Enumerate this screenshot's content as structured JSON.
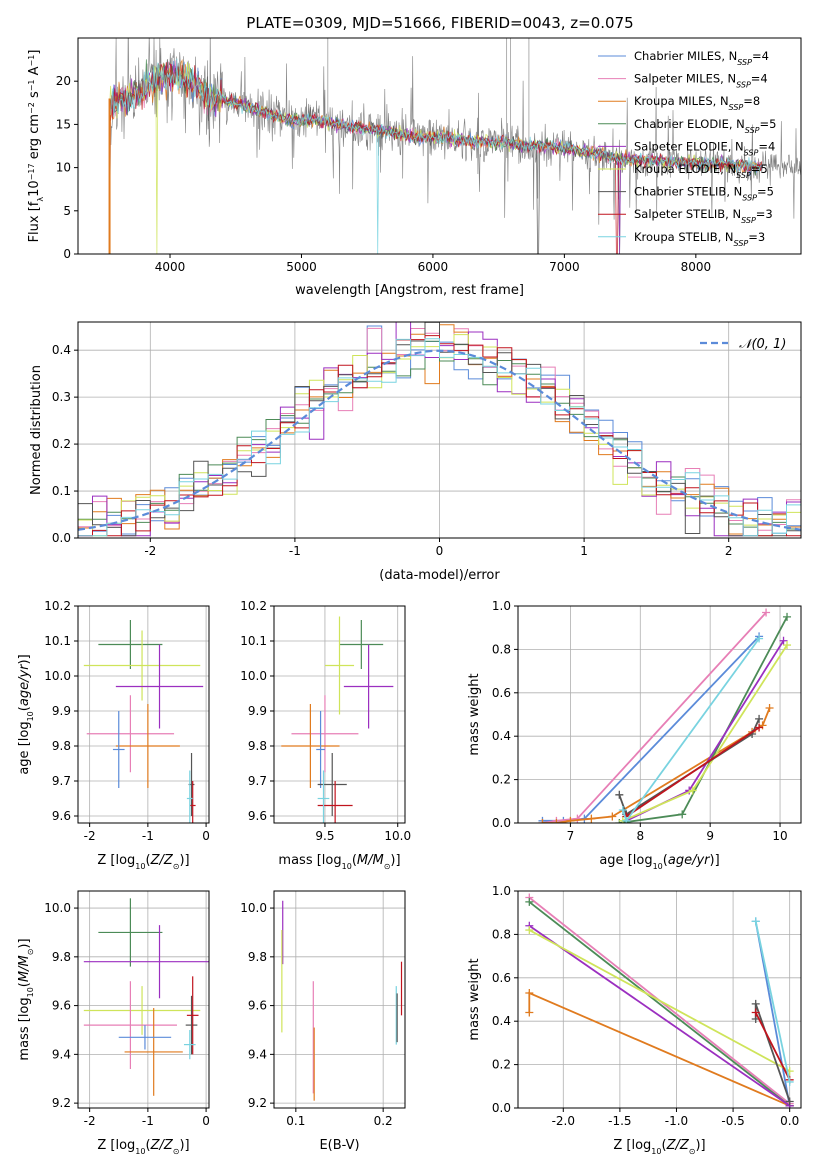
{
  "figure_title": "PLATE=0309, MJD=51666, FIBERID=0043, z=0.075",
  "colors": {
    "Chabrier MILES": "#5b8bd9",
    "Salpeter MILES": "#e77fb6",
    "Kroupa MILES": "#e07b1f",
    "Chabrier ELODIE": "#4c8b57",
    "Salpeter ELODIE": "#9b2fc0",
    "Kroupa ELODIE": "#cfe45a",
    "Chabrier STELIB": "#555555",
    "Salpeter STELIB": "#c0141e",
    "Kroupa STELIB": "#79d3e0",
    "data": "#808080",
    "normal": "#5b8bd9"
  },
  "legend1": [
    {
      "label": "Chabrier MILES, N",
      "sub": "SSP",
      "suffix": "=4",
      "model": "Chabrier MILES"
    },
    {
      "label": "Salpeter MILES, N",
      "sub": "SSP",
      "suffix": "=4",
      "model": "Salpeter MILES"
    },
    {
      "label": "Kroupa MILES, N",
      "sub": "SSP",
      "suffix": "=8",
      "model": "Kroupa MILES"
    },
    {
      "label": "Chabrier ELODIE, N",
      "sub": "SSP",
      "suffix": "=5",
      "model": "Chabrier ELODIE"
    },
    {
      "label": "Salpeter ELODIE, N",
      "sub": "SSP",
      "suffix": "=4",
      "model": "Salpeter ELODIE"
    },
    {
      "label": "Kroupa ELODIE, N",
      "sub": "SSP",
      "suffix": "=5",
      "model": "Kroupa ELODIE"
    },
    {
      "label": "Chabrier STELIB, N",
      "sub": "SSP",
      "suffix": "=5",
      "model": "Chabrier STELIB"
    },
    {
      "label": "Salpeter STELIB, N",
      "sub": "SSP",
      "suffix": "=3",
      "model": "Salpeter STELIB"
    },
    {
      "label": "Kroupa STELIB, N",
      "sub": "SSP",
      "suffix": "=3",
      "model": "Kroupa STELIB"
    }
  ],
  "chart_data": [
    {
      "id": "spectrum",
      "type": "line",
      "xlabel": "wavelength [Angstrom, rest frame]",
      "ylabel": "Flux [fλ10⁻¹⁷ erg cm⁻² s⁻¹ A⁻¹]",
      "xlim": [
        3300,
        8800
      ],
      "ylim": [
        0,
        25
      ],
      "xticks": [
        4000,
        5000,
        6000,
        7000,
        8000
      ],
      "yticks": [
        0,
        5,
        10,
        15,
        20
      ],
      "grid": false,
      "legend_position": "top-right",
      "continuum": {
        "x": [
          3530,
          3600,
          3700,
          3800,
          3900,
          4000,
          4100,
          4200,
          4300,
          4400,
          4500,
          4700,
          4900,
          5100,
          5300,
          5500,
          5700,
          5900,
          6100,
          6300,
          6500,
          6700,
          6900,
          7100,
          7300,
          7400
        ],
        "y": [
          17,
          17.5,
          18,
          19,
          20.5,
          20.5,
          20.5,
          19.5,
          18,
          18,
          17.5,
          16.5,
          15.5,
          15.5,
          15,
          14.5,
          14,
          13.5,
          13.5,
          13,
          13,
          12.5,
          12.5,
          12,
          11.5,
          11
        ]
      },
      "data_range": [
        3530,
        8800
      ]
    },
    {
      "id": "residuals",
      "type": "step-histogram",
      "xlabel": "(data-model)/error",
      "ylabel": "Normed distribution",
      "xlim": [
        -2.5,
        2.5
      ],
      "ylim": [
        0,
        0.46
      ],
      "xticks": [
        -2,
        -1,
        0,
        1,
        2
      ],
      "yticks": [
        0.0,
        0.1,
        0.2,
        0.3,
        0.4
      ],
      "grid": true,
      "bin_width": 0.1,
      "reference_curve": {
        "label": "𝒩(0, 1)",
        "style": "dashed",
        "mean": 0,
        "sigma": 1
      },
      "legend_position": "top-right"
    },
    {
      "id": "age_vs_Z",
      "type": "errorbar",
      "xlabel": "Z [log10(Z/Z⊙)]",
      "ylabel": "age  [log10(age/yr)]",
      "xlim": [
        -2.2,
        0.05
      ],
      "ylim": [
        9.58,
        10.2
      ],
      "xticks": [
        -2,
        -1,
        0
      ],
      "yticks": [
        9.6,
        9.7,
        9.8,
        9.9,
        10.0,
        10.1,
        10.2
      ],
      "grid": true,
      "points": [
        {
          "model": "Chabrier ELODIE",
          "x": -1.3,
          "xerr": 0.55,
          "y": 10.09,
          "yerr": 0.07
        },
        {
          "model": "Kroupa ELODIE",
          "x": -1.1,
          "xerr": 1.0,
          "y": 10.03,
          "yerr": 0.1
        },
        {
          "model": "Salpeter ELODIE",
          "x": -0.8,
          "xerr": 0.75,
          "y": 9.97,
          "yerr": 0.12
        },
        {
          "model": "Salpeter MILES",
          "x": -1.3,
          "xerr": 0.75,
          "y": 9.835,
          "yerr": 0.11
        },
        {
          "model": "Kroupa MILES",
          "x": -1.0,
          "xerr": 0.55,
          "y": 9.8,
          "yerr": 0.12
        },
        {
          "model": "Chabrier MILES",
          "x": -1.5,
          "xerr": 0.1,
          "y": 9.79,
          "yerr": 0.11
        },
        {
          "model": "Chabrier STELIB",
          "x": -0.25,
          "xerr": 0.05,
          "y": 9.69,
          "yerr": 0.09
        },
        {
          "model": "Salpeter STELIB",
          "x": -0.23,
          "xerr": 0.05,
          "y": 9.63,
          "yerr": 0.07
        },
        {
          "model": "Kroupa STELIB",
          "x": -0.28,
          "xerr": 0.05,
          "y": 9.65,
          "yerr": 0.08
        }
      ]
    },
    {
      "id": "age_vs_mass",
      "type": "errorbar",
      "xlabel": "mass [log10(M/M⊙)]",
      "ylabel": "",
      "xlim": [
        9.15,
        10.05
      ],
      "ylim": [
        9.58,
        10.2
      ],
      "xticks": [
        9.5,
        10.0
      ],
      "yticks": [
        9.6,
        9.7,
        9.8,
        9.9,
        10.0,
        10.1,
        10.2
      ],
      "grid": true,
      "points": [
        {
          "model": "Chabrier ELODIE",
          "x": 9.75,
          "xerr": 0.15,
          "y": 10.09,
          "yerr": 0.07
        },
        {
          "model": "Kroupa ELODIE",
          "x": 9.6,
          "xerr": 0.1,
          "y": 10.03,
          "yerr": 0.14
        },
        {
          "model": "Salpeter ELODIE",
          "x": 9.8,
          "xerr": 0.17,
          "y": 9.97,
          "yerr": 0.12
        },
        {
          "model": "Salpeter MILES",
          "x": 9.5,
          "xerr": 0.23,
          "y": 9.835,
          "yerr": 0.11
        },
        {
          "model": "Kroupa MILES",
          "x": 9.4,
          "xerr": 0.2,
          "y": 9.8,
          "yerr": 0.12
        },
        {
          "model": "Chabrier MILES",
          "x": 9.47,
          "xerr": 0.03,
          "y": 9.79,
          "yerr": 0.11
        },
        {
          "model": "Chabrier STELIB",
          "x": 9.55,
          "xerr": 0.1,
          "y": 9.69,
          "yerr": 0.09
        },
        {
          "model": "Salpeter STELIB",
          "x": 9.57,
          "xerr": 0.12,
          "y": 9.63,
          "yerr": 0.07
        },
        {
          "model": "Kroupa STELIB",
          "x": 9.49,
          "xerr": 0.04,
          "y": 9.65,
          "yerr": 0.08
        }
      ]
    },
    {
      "id": "weight_vs_age",
      "type": "line",
      "xlabel": "age  [log10(age/yr)]",
      "ylabel": "mass weight",
      "xlim": [
        6.25,
        10.3
      ],
      "ylim": [
        0,
        1.0
      ],
      "xticks": [
        7,
        8,
        9,
        10
      ],
      "yticks": [
        0.0,
        0.2,
        0.4,
        0.6,
        0.8,
        1.0
      ],
      "grid": true,
      "series": [
        {
          "model": "Chabrier MILES",
          "x": [
            6.6,
            6.9,
            7.2,
            9.7
          ],
          "y": [
            0.01,
            0.01,
            0.02,
            0.86
          ]
        },
        {
          "model": "Salpeter MILES",
          "x": [
            6.6,
            6.8,
            7.1,
            9.8
          ],
          "y": [
            0.0,
            0.01,
            0.02,
            0.97
          ]
        },
        {
          "model": "Kroupa MILES",
          "x": [
            6.6,
            6.8,
            7.0,
            7.3,
            7.6,
            9.6,
            9.75,
            9.85
          ],
          "y": [
            0.0,
            0.0,
            0.01,
            0.02,
            0.03,
            0.42,
            0.45,
            0.53
          ]
        },
        {
          "model": "Chabrier ELODIE",
          "x": [
            7.7,
            8.6,
            10.1
          ],
          "y": [
            0.0,
            0.04,
            0.95
          ]
        },
        {
          "model": "Salpeter ELODIE",
          "x": [
            7.8,
            8.7,
            10.05
          ],
          "y": [
            0.01,
            0.15,
            0.84
          ]
        },
        {
          "model": "Kroupa ELODIE",
          "x": [
            7.75,
            8.75,
            10.1
          ],
          "y": [
            0.01,
            0.15,
            0.82
          ]
        },
        {
          "model": "Chabrier STELIB",
          "x": [
            7.7,
            7.8,
            9.6,
            9.7
          ],
          "y": [
            0.13,
            0.04,
            0.41,
            0.48
          ]
        },
        {
          "model": "Salpeter STELIB",
          "x": [
            7.8,
            9.7
          ],
          "y": [
            0.03,
            0.44
          ]
        },
        {
          "model": "Kroupa STELIB",
          "x": [
            7.75,
            7.8,
            9.7
          ],
          "y": [
            0.06,
            0.01,
            0.85
          ]
        }
      ]
    },
    {
      "id": "mass_vs_Z",
      "type": "errorbar",
      "xlabel": "Z [log10(Z/Z⊙)]",
      "ylabel": "mass [log10(M/M⊙)]",
      "xlim": [
        -2.2,
        0.05
      ],
      "ylim": [
        9.18,
        10.07
      ],
      "xticks": [
        -2,
        -1,
        0
      ],
      "yticks": [
        9.2,
        9.4,
        9.6,
        9.8,
        10.0
      ],
      "grid": true,
      "points": [
        {
          "model": "Chabrier ELODIE",
          "x": -1.3,
          "xerr": 0.55,
          "y": 9.9,
          "yerr": 0.14
        },
        {
          "model": "Salpeter ELODIE",
          "x": -0.8,
          "xerr": 1.3,
          "y": 9.78,
          "yerr": 0.15
        },
        {
          "model": "Kroupa ELODIE",
          "x": -1.1,
          "xerr": 1.0,
          "y": 9.58,
          "yerr": 0.1
        },
        {
          "model": "Salpeter MILES",
          "x": -1.3,
          "xerr": 0.8,
          "y": 9.52,
          "yerr": 0.18
        },
        {
          "model": "Kroupa MILES",
          "x": -0.9,
          "xerr": 0.5,
          "y": 9.41,
          "yerr": 0.18
        },
        {
          "model": "Chabrier MILES",
          "x": -1.05,
          "xerr": 0.45,
          "y": 9.47,
          "yerr": 0.05
        },
        {
          "model": "Chabrier STELIB",
          "x": -0.25,
          "xerr": 0.1,
          "y": 9.52,
          "yerr": 0.12
        },
        {
          "model": "Salpeter STELIB",
          "x": -0.23,
          "xerr": 0.1,
          "y": 9.56,
          "yerr": 0.16
        },
        {
          "model": "Kroupa STELIB",
          "x": -0.28,
          "xerr": 0.1,
          "y": 9.44,
          "yerr": 0.06
        }
      ]
    },
    {
      "id": "mass_vs_ebv",
      "type": "errorbar",
      "xlabel": "E(B-V)",
      "ylabel": "",
      "xlim": [
        0.075,
        0.225
      ],
      "ylim": [
        9.18,
        10.07
      ],
      "xticks": [
        0.1,
        0.2
      ],
      "yticks": [
        9.2,
        9.4,
        9.6,
        9.8,
        10.0
      ],
      "grid": true,
      "points": [
        {
          "model": "Salpeter ELODIE",
          "x": 0.085,
          "xerr": 0,
          "y": 9.9,
          "yerr": 0.13
        },
        {
          "model": "Kroupa ELODIE",
          "x": 0.084,
          "xerr": 0,
          "y": 9.7,
          "yerr": 0.21
        },
        {
          "model": "Salpeter MILES",
          "x": 0.12,
          "xerr": 0,
          "y": 9.47,
          "yerr": 0.23
        },
        {
          "model": "Kroupa MILES",
          "x": 0.121,
          "xerr": 0,
          "y": 9.36,
          "yerr": 0.15
        },
        {
          "model": "Kroupa STELIB",
          "x": 0.215,
          "xerr": 0,
          "y": 9.56,
          "yerr": 0.12
        },
        {
          "model": "Chabrier STELIB",
          "x": 0.216,
          "xerr": 0,
          "y": 9.55,
          "yerr": 0.1
        },
        {
          "model": "Salpeter STELIB",
          "x": 0.221,
          "xerr": 0,
          "y": 9.67,
          "yerr": 0.11
        }
      ]
    },
    {
      "id": "weight_vs_Z",
      "type": "line",
      "xlabel": "Z [log10(Z/Z⊙)]",
      "ylabel": "mass weight",
      "xlim": [
        -2.4,
        0.1
      ],
      "ylim": [
        0,
        1.0
      ],
      "xticks": [
        -2.0,
        -1.5,
        -1.0,
        -0.5,
        0.0
      ],
      "yticks": [
        0.0,
        0.2,
        0.4,
        0.6,
        0.8,
        1.0
      ],
      "grid": true,
      "series": [
        {
          "model": "Chabrier MILES",
          "x": [
            -0.3,
            0.0
          ],
          "y": [
            0.86,
            0.01
          ]
        },
        {
          "model": "Salpeter MILES",
          "x": [
            -2.3,
            0.0
          ],
          "y": [
            0.97,
            0.02
          ]
        },
        {
          "model": "Kroupa MILES",
          "x": [
            -2.3,
            -2.3,
            0.0
          ],
          "y": [
            0.44,
            0.53,
            0.01
          ]
        },
        {
          "model": "Chabrier ELODIE",
          "x": [
            -2.3,
            0.0
          ],
          "y": [
            0.95,
            0.01
          ]
        },
        {
          "model": "Salpeter ELODIE",
          "x": [
            -2.3,
            0.0
          ],
          "y": [
            0.84,
            0.01
          ]
        },
        {
          "model": "Kroupa ELODIE",
          "x": [
            -2.3,
            0.0
          ],
          "y": [
            0.82,
            0.17
          ]
        },
        {
          "model": "Chabrier STELIB",
          "x": [
            -0.3,
            -0.3,
            0.0
          ],
          "y": [
            0.41,
            0.48,
            0.03
          ]
        },
        {
          "model": "Salpeter STELIB",
          "x": [
            -0.3,
            0.0
          ],
          "y": [
            0.44,
            0.13
          ]
        },
        {
          "model": "Kroupa STELIB",
          "x": [
            -0.3,
            0.0
          ],
          "y": [
            0.86,
            0.12
          ]
        }
      ]
    }
  ]
}
